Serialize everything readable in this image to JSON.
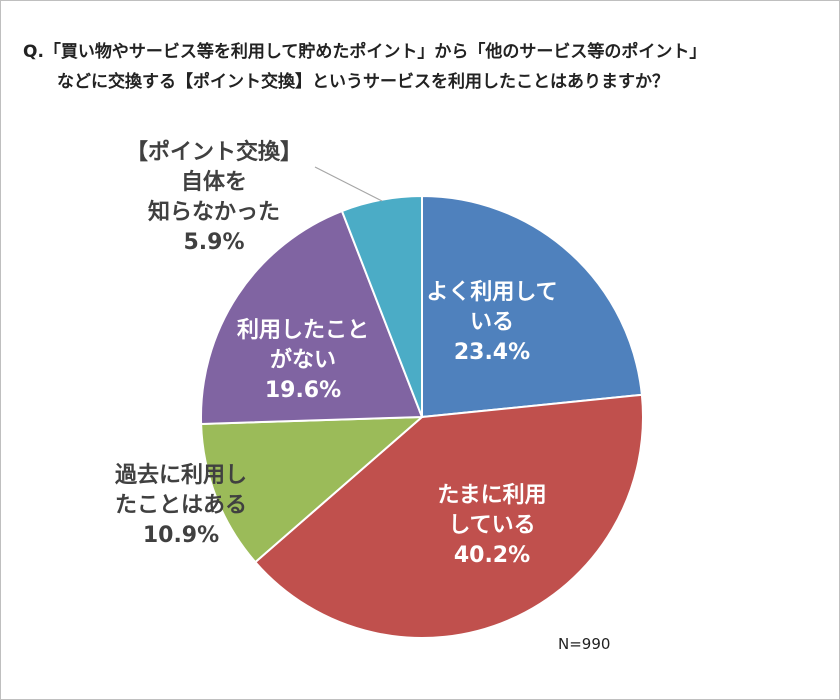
{
  "chart_data": {
    "type": "pie",
    "title_lines": [
      "Q.「買い物やサービス等を利用して貯めたポイント」から「他のサービス等のポイント」",
      "などに交換する【ポイント交換】というサービスを利用したことはありますか？"
    ],
    "slices": [
      {
        "label_lines": [
          "よく利用して",
          "いる"
        ],
        "value": 23.4,
        "value_label": "23.4%",
        "color": "#4F81BD"
      },
      {
        "label_lines": [
          "たまに利用",
          "している"
        ],
        "value": 40.2,
        "value_label": "40.2%",
        "color": "#C0504D"
      },
      {
        "label_lines": [
          "過去に利用し",
          "たことはある"
        ],
        "value": 10.9,
        "value_label": "10.9%",
        "color": "#9BBB59"
      },
      {
        "label_lines": [
          "利用したこと",
          "がない"
        ],
        "value": 19.6,
        "value_label": "19.6%",
        "color": "#8064A2"
      },
      {
        "label_lines": [
          "【ポイント交換】",
          "自体を",
          "知らなかった"
        ],
        "value": 5.9,
        "value_label": "5.9%",
        "color": "#4BACC6"
      }
    ],
    "start": "top",
    "direction": "clockwise",
    "note": "N=990"
  }
}
